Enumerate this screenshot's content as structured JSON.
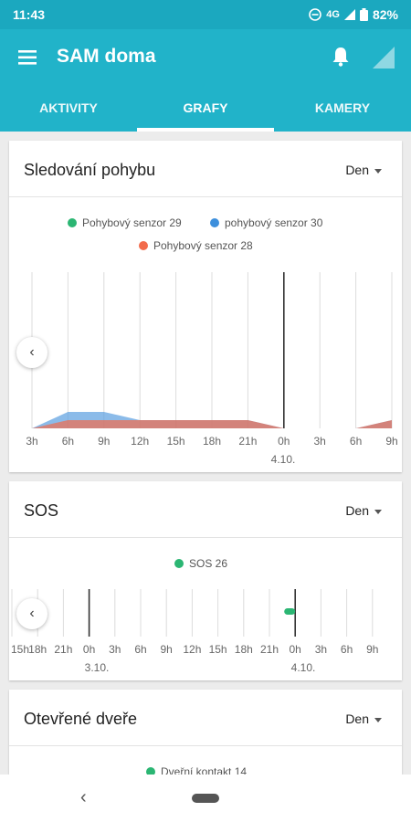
{
  "status": {
    "time": "11:43",
    "network": "4G",
    "battery": "82%"
  },
  "app": {
    "title": "SAM doma"
  },
  "tabs": [
    {
      "label": "AKTIVITY"
    },
    {
      "label": "GRAFY"
    },
    {
      "label": "KAMERY"
    }
  ],
  "cards": [
    {
      "title": "Sledování pohybu",
      "range": "Den",
      "legend": [
        {
          "label": "Pohybový senzor 29",
          "color": "#2bb673"
        },
        {
          "label": "pohybový senzor 30",
          "color": "#3d8fdc"
        },
        {
          "label": "Pohybový senzor 28",
          "color": "#f26b4b"
        }
      ],
      "x_labels": [
        "3h",
        "6h",
        "9h",
        "12h",
        "15h",
        "18h",
        "21h",
        "0h",
        "3h",
        "6h",
        "9h"
      ],
      "date_label": "4.10."
    },
    {
      "title": "SOS",
      "range": "Den",
      "legend": [
        {
          "label": "SOS 26",
          "color": "#2bb673"
        }
      ],
      "x_labels": [
        "15h",
        "18h",
        "21h",
        "0h",
        "3h",
        "6h",
        "9h",
        "12h",
        "15h",
        "18h",
        "21h",
        "0h",
        "3h",
        "6h",
        "9h"
      ],
      "date_labels": [
        "3.10.",
        "4.10."
      ]
    },
    {
      "title": "Otevřené dveře",
      "range": "Den",
      "legend": [
        {
          "label": "Dveřní kontakt 14",
          "color": "#2bb673"
        }
      ]
    }
  ],
  "chart_data": [
    {
      "type": "area",
      "x": [
        "3h",
        "6h",
        "9h",
        "12h",
        "15h",
        "18h",
        "21h",
        "0h",
        "3h",
        "6h",
        "9h"
      ],
      "series": [
        {
          "name": "pohybový senzor 30",
          "values": [
            0,
            2,
            2,
            1,
            1,
            1,
            1,
            0,
            0,
            0,
            1
          ]
        },
        {
          "name": "Pohybový senzor 28",
          "values": [
            0,
            1,
            1,
            1,
            1,
            1,
            1,
            0,
            0,
            0,
            1
          ]
        },
        {
          "name": "Pohybový senzor 29",
          "values": [
            0,
            0,
            0,
            0,
            0,
            0,
            0,
            0,
            0,
            0,
            0
          ]
        }
      ],
      "grid": true
    },
    {
      "type": "scatter",
      "x": [
        "15h",
        "18h",
        "21h",
        "0h",
        "3h",
        "6h",
        "9h",
        "12h",
        "15h",
        "18h",
        "21h",
        "0h",
        "3h",
        "6h",
        "9h"
      ],
      "series": [
        {
          "name": "SOS 26",
          "points": [
            {
              "x": "0h",
              "date": "4.10."
            }
          ]
        }
      ],
      "grid": true
    }
  ]
}
